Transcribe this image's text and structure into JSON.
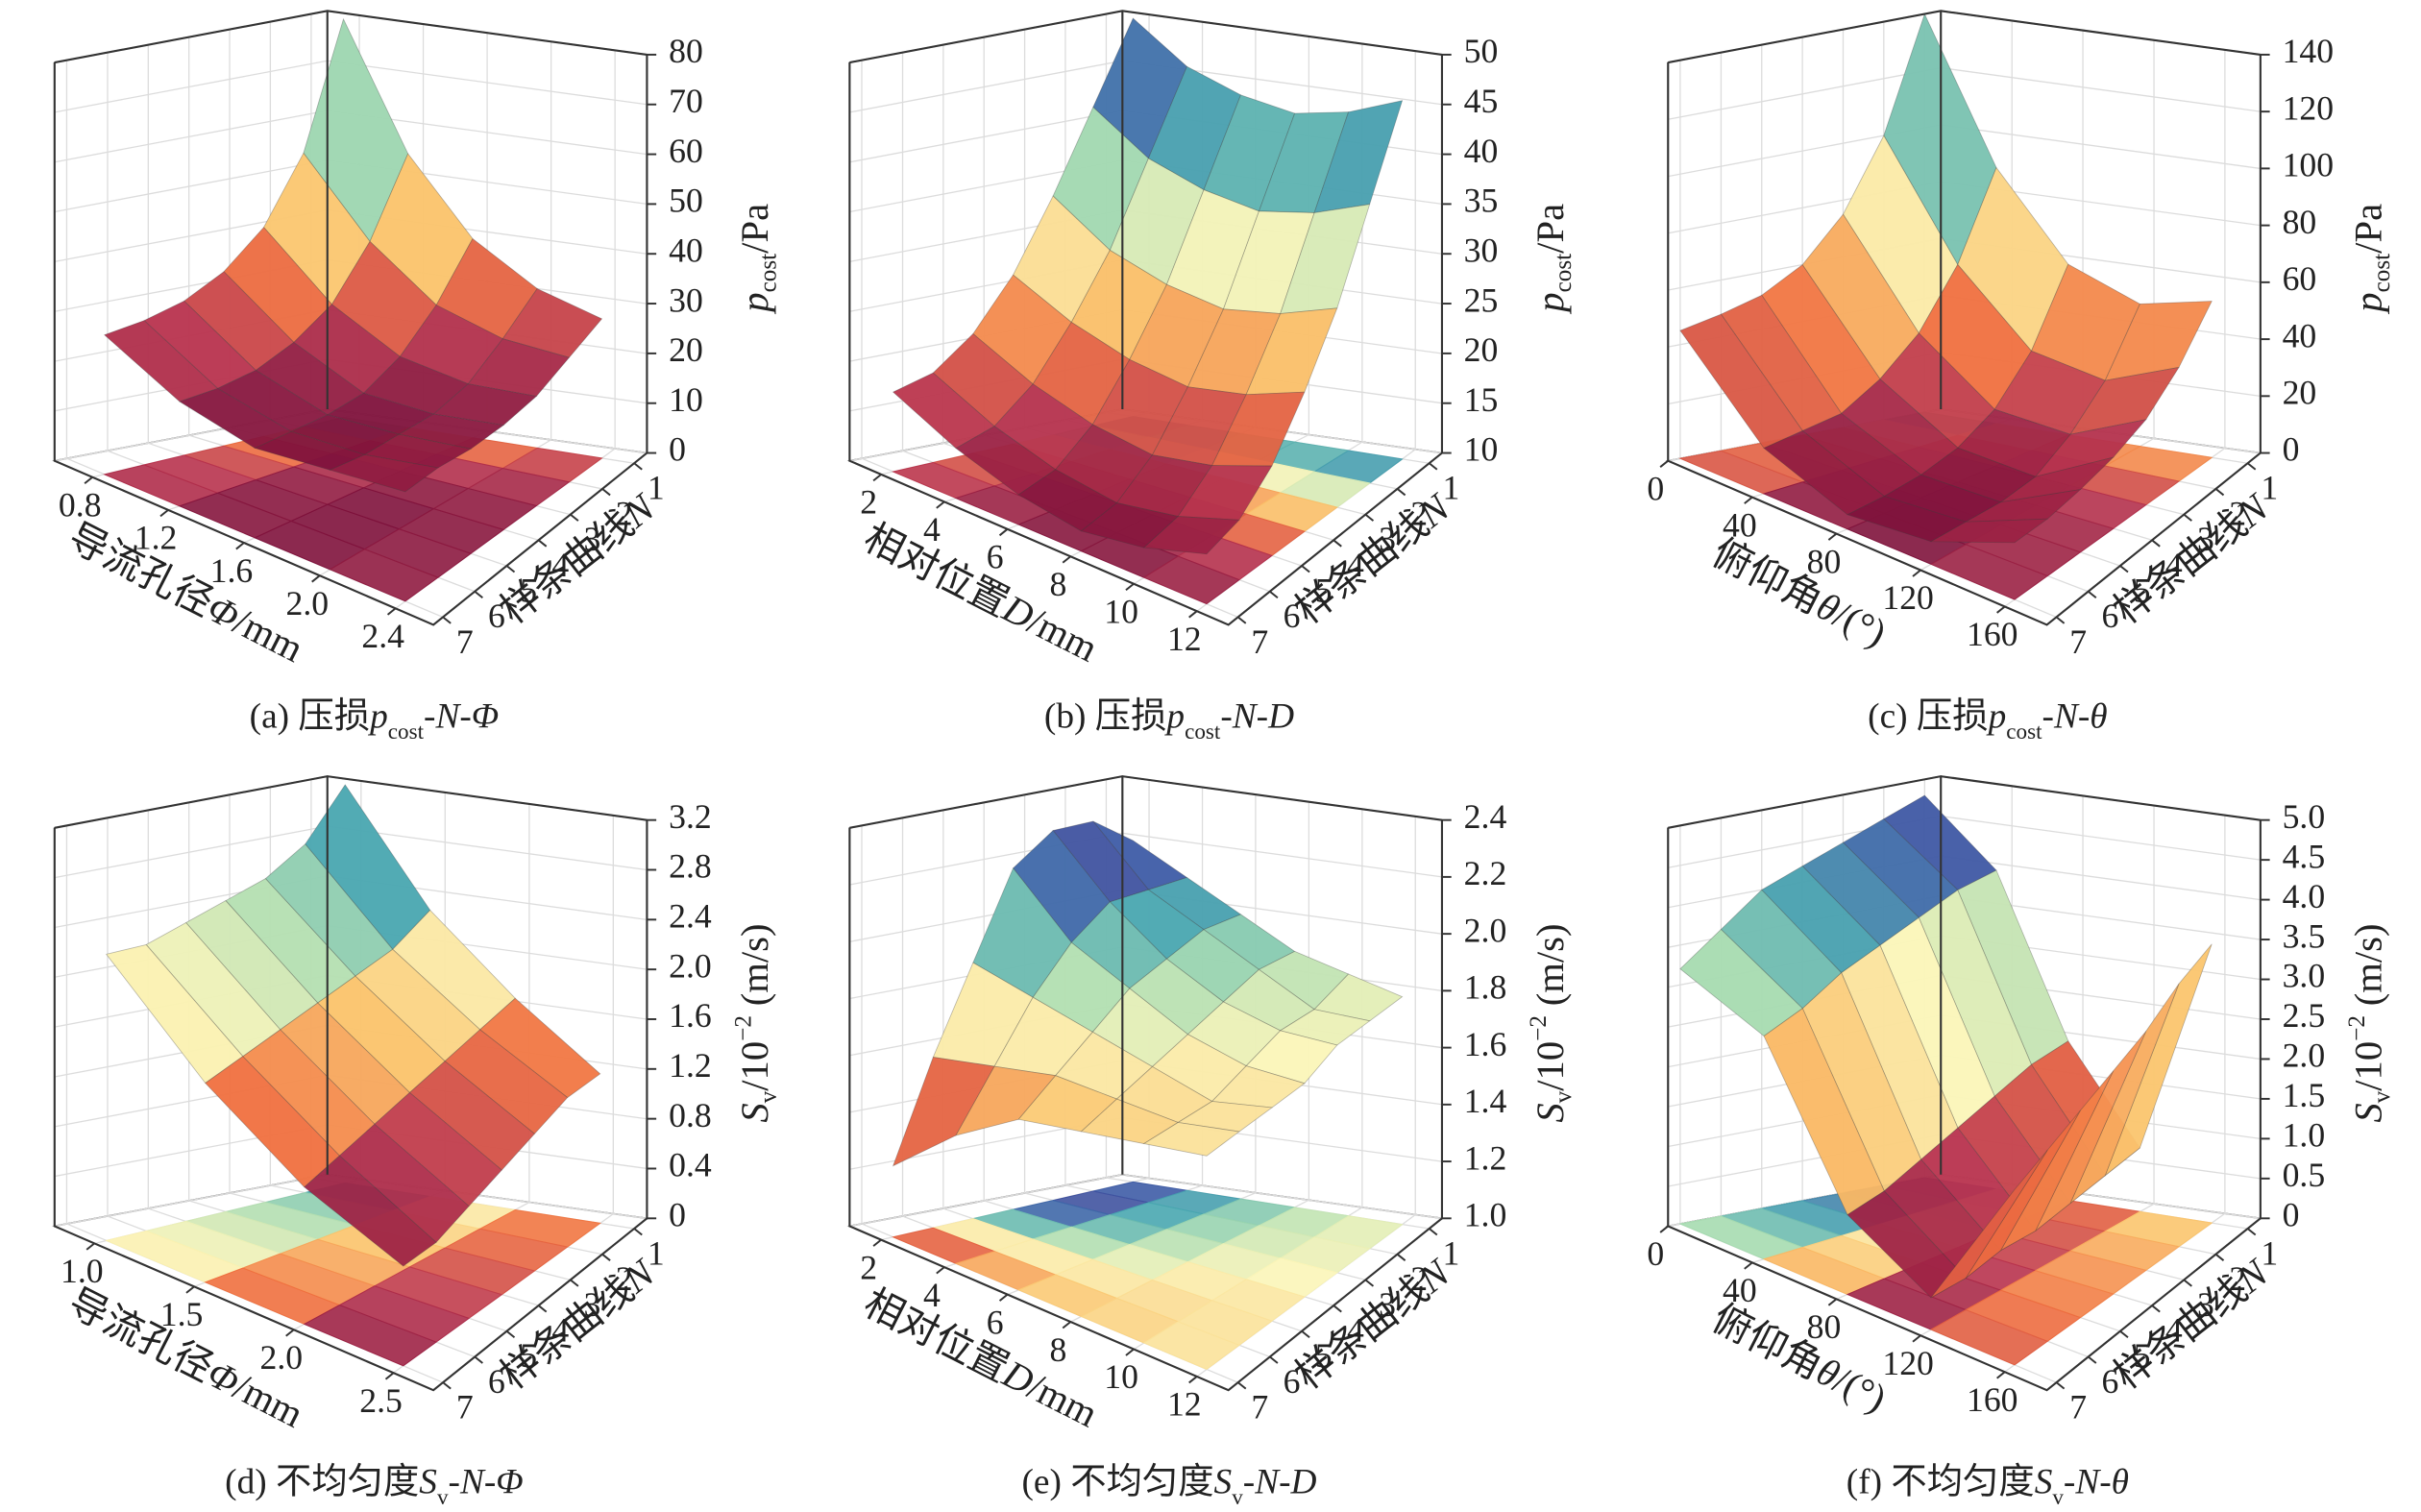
{
  "colormap": [
    "#7a0f3a",
    "#b8334e",
    "#f0703f",
    "#fbc36a",
    "#fbf5b8",
    "#a6dbb0",
    "#49a7b0",
    "#3d5ea8",
    "#4b2f88"
  ],
  "panels": [
    {
      "caption": {
        "tag": "(a) 压损",
        "var": "p",
        "sub": "cost",
        "rest": "-N-Φ"
      },
      "zlabel": {
        "var": "p",
        "sub": "cost",
        "unit": "/Pa"
      },
      "xlabel": {
        "text": "导流孔径",
        "var": "Φ",
        "unit": "/mm"
      },
      "nlabel": {
        "text": "样条曲线",
        "var": "N"
      },
      "xticks": [
        0.8,
        1.2,
        1.6,
        {
          "value": 2,
          "label": "2.0"
        },
        2.4
      ],
      "xlim": [
        0.6,
        2.6
      ],
      "nticks": [
        1,
        2,
        3,
        4,
        5,
        6,
        7
      ],
      "nlim": [
        0.6,
        7.3
      ],
      "zticks": [
        0,
        10,
        20,
        30,
        40,
        50,
        60,
        70,
        80
      ],
      "zlim": [
        0,
        80
      ],
      "z": [
        [
          80,
          55,
          40,
          32,
          28
        ],
        [
          55,
          40,
          30,
          26,
          25
        ],
        [
          42,
          30,
          23,
          21,
          22
        ],
        [
          35,
          25,
          19,
          19,
          21
        ],
        [
          31,
          22,
          18,
          19,
          21
        ],
        [
          29,
          21,
          18,
          19,
          22
        ],
        [
          28,
          21,
          18,
          20,
          22
        ]
      ]
    },
    {
      "caption": {
        "tag": "(b) 压损",
        "var": "p",
        "sub": "cost",
        "rest": "-N-D"
      },
      "zlabel": {
        "var": "p",
        "sub": "cost",
        "unit": "/Pa"
      },
      "xlabel": {
        "text": "相对位置",
        "var": "D",
        "unit": "/mm"
      },
      "nlabel": {
        "text": "样条曲线",
        "var": "N"
      },
      "xticks": [
        2,
        4,
        6,
        8,
        10,
        12
      ],
      "xlim": [
        1,
        13
      ],
      "nticks": [
        1,
        2,
        3,
        4,
        5,
        6,
        7
      ],
      "nlim": [
        0.6,
        7.3
      ],
      "zticks": [
        10,
        15,
        20,
        25,
        30,
        35,
        40,
        45,
        50
      ],
      "zlim": [
        10,
        50
      ],
      "z": [
        [
          50,
          46,
          44,
          43,
          44,
          46
        ],
        [
          42,
          38,
          36,
          35,
          36,
          38
        ],
        [
          34,
          30,
          28,
          27,
          28,
          30
        ],
        [
          27,
          24,
          22,
          21,
          22,
          24
        ],
        [
          22,
          19,
          17,
          16,
          17,
          19
        ],
        [
          19,
          16,
          14,
          13,
          14,
          16
        ],
        [
          18,
          15,
          13,
          12,
          13,
          15
        ]
      ]
    },
    {
      "caption": {
        "tag": "(c) 压损",
        "var": "p",
        "sub": "cost",
        "rest": "-N-θ"
      },
      "zlabel": {
        "var": "p",
        "sub": "cost",
        "unit": "/Pa"
      },
      "xlabel": {
        "text": "俯仰角",
        "var": "θ",
        "unit": "/(°)"
      },
      "nlabel": {
        "text": "样条曲线",
        "var": "N"
      },
      "xticks": [
        0,
        40,
        80,
        120,
        160
      ],
      "xlim": [
        0,
        180
      ],
      "nticks": [
        1,
        2,
        3,
        4,
        5,
        6,
        7
      ],
      "nlim": [
        0.6,
        7.3
      ],
      "zticks": [
        0,
        20,
        40,
        60,
        80,
        100,
        120,
        140
      ],
      "zlim": [
        0,
        140
      ],
      "z": [
        [
          140,
          90,
          60,
          50,
          55
        ],
        [
          100,
          60,
          35,
          30,
          40
        ],
        [
          75,
          40,
          20,
          18,
          30
        ],
        [
          60,
          28,
          12,
          10,
          25
        ],
        [
          52,
          20,
          8,
          8,
          22
        ],
        [
          48,
          18,
          6,
          8,
          20
        ],
        [
          45,
          16,
          5,
          8,
          20
        ]
      ]
    },
    {
      "caption": {
        "tag": "(d) 不均匀度",
        "var": "S",
        "sub": "v",
        "rest": "-N-Φ"
      },
      "zlabel": {
        "var": "S",
        "sub": "v",
        "unit": "/10",
        "sup": "−2",
        "unit2": "(m/s)"
      },
      "xlabel": {
        "text": "导流孔径",
        "var": "Φ",
        "unit": "/mm"
      },
      "nlabel": {
        "text": "样条曲线",
        "var": "N"
      },
      "xticks": [
        {
          "value": 1,
          "label": "1.0"
        },
        1.5,
        {
          "value": 2,
          "label": "2.0"
        },
        2.5
      ],
      "xlim": [
        0.8,
        2.7
      ],
      "nticks": [
        1,
        2,
        3,
        4,
        5,
        6,
        7
      ],
      "nlim": [
        0.6,
        7.3
      ],
      "zticks": [
        0,
        0.4,
        0.8,
        1.2,
        1.6,
        {
          "value": 2,
          "label": "2.0"
        },
        2.4,
        2.8,
        3.2
      ],
      "zlim": [
        0,
        3.2
      ],
      "z": [
        [
          3.2,
          2.3,
          1.7,
          1.2
        ],
        [
          2.8,
          2.1,
          1.6,
          1.2
        ],
        [
          2.6,
          2.0,
          1.5,
          1.1
        ],
        [
          2.5,
          1.9,
          1.4,
          1.0
        ],
        [
          2.4,
          1.8,
          1.3,
          0.9
        ],
        [
          2.3,
          1.7,
          1.2,
          0.8
        ],
        [
          2.3,
          1.6,
          1.1,
          0.8
        ]
      ]
    },
    {
      "caption": {
        "tag": "(e) 不均匀度",
        "var": "S",
        "sub": "v",
        "rest": "-N-D"
      },
      "zlabel": {
        "var": "S",
        "sub": "v",
        "unit": "/10",
        "sup": "−2",
        "unit2": "(m/s)"
      },
      "xlabel": {
        "text": "相对位置",
        "var": "D",
        "unit": "/mm"
      },
      "nlabel": {
        "text": "样条曲线",
        "var": "N"
      },
      "xticks": [
        2,
        4,
        6,
        8,
        10,
        12
      ],
      "xlim": [
        1,
        13
      ],
      "nticks": [
        1,
        2,
        3,
        4,
        5,
        6,
        7
      ],
      "nlim": [
        0.6,
        7.3
      ],
      "zticks": [
        {
          "value": 1,
          "label": "1.0"
        },
        1.2,
        1.4,
        1.6,
        1.8,
        {
          "value": 2,
          "label": "2.0"
        },
        2.2,
        2.4
      ],
      "zlim": [
        1,
        2.4
      ],
      "z": [
        [
          2.2,
          2.1,
          2.0,
          1.9,
          1.85,
          1.8
        ],
        [
          2.3,
          2.1,
          2.0,
          1.9,
          1.8,
          1.8
        ],
        [
          2.3,
          2.1,
          1.95,
          1.85,
          1.8,
          1.8
        ],
        [
          2.2,
          2.0,
          1.9,
          1.8,
          1.75,
          1.75
        ],
        [
          1.9,
          1.85,
          1.8,
          1.75,
          1.7,
          1.75
        ],
        [
          1.6,
          1.65,
          1.7,
          1.7,
          1.7,
          1.75
        ],
        [
          1.25,
          1.45,
          1.6,
          1.65,
          1.7,
          1.75
        ]
      ]
    },
    {
      "caption": {
        "tag": "(f) 不均匀度",
        "var": "S",
        "sub": "v",
        "rest": "-N-θ"
      },
      "zlabel": {
        "var": "S",
        "sub": "v",
        "unit": "/10",
        "sup": "−2",
        "unit2": "(m/s)"
      },
      "xlabel": {
        "text": "俯仰角",
        "var": "θ",
        "unit": "/(°)"
      },
      "nlabel": {
        "text": "样条曲线",
        "var": "N"
      },
      "xticks": [
        0,
        40,
        80,
        120,
        160
      ],
      "xlim": [
        0,
        180
      ],
      "nticks": [
        1,
        2,
        3,
        4,
        5,
        6,
        7
      ],
      "nlim": [
        0.6,
        7.3
      ],
      "zticks": [
        0,
        0.5,
        {
          "value": 1,
          "label": "1.0"
        },
        1.5,
        {
          "value": 2,
          "label": "2.0"
        },
        2.5,
        {
          "value": 3,
          "label": "3.0"
        },
        3.5,
        {
          "value": 4,
          "label": "4.0"
        },
        4.5,
        {
          "value": 5,
          "label": "5.0"
        }
      ],
      "zlim": [
        0,
        5
      ],
      "z": [
        [
          4.8,
          4.0,
          2.0,
          0.8,
          3.5
        ],
        [
          4.6,
          3.9,
          1.9,
          0.7,
          3.3
        ],
        [
          4.4,
          3.7,
          1.7,
          0.6,
          3.0
        ],
        [
          4.2,
          3.5,
          1.5,
          0.5,
          2.8
        ],
        [
          4.0,
          3.3,
          1.3,
          0.5,
          2.6
        ],
        [
          3.6,
          3.0,
          1.1,
          0.4,
          2.4
        ],
        [
          3.2,
          2.8,
          1.0,
          0.4,
          2.2
        ]
      ]
    }
  ]
}
